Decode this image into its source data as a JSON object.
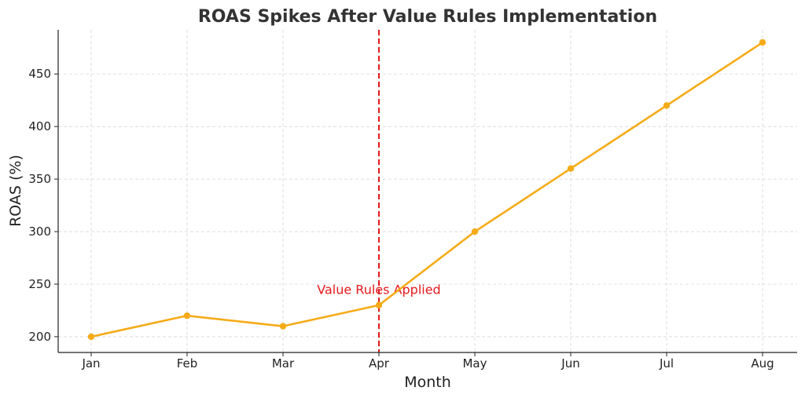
{
  "chart_data": {
    "type": "line",
    "title": "ROAS Spikes After Value Rules Implementation",
    "xlabel": "Month",
    "ylabel": "ROAS (%)",
    "categories": [
      "Jan",
      "Feb",
      "Mar",
      "Apr",
      "May",
      "Jun",
      "Jul",
      "Aug"
    ],
    "series": [
      {
        "values": [
          200,
          220,
          210,
          230,
          300,
          360,
          420,
          480
        ],
        "color": "#f5ab18"
      }
    ],
    "ylim": [
      185,
      492
    ],
    "yticks": [
      200,
      250,
      300,
      350,
      400,
      450
    ],
    "grid": true,
    "annotations": [
      {
        "type": "vline",
        "x": "Apr",
        "color": "#e31a1c",
        "style": "dashed",
        "text": "Value Rules Applied",
        "text_y": 245
      }
    ]
  }
}
